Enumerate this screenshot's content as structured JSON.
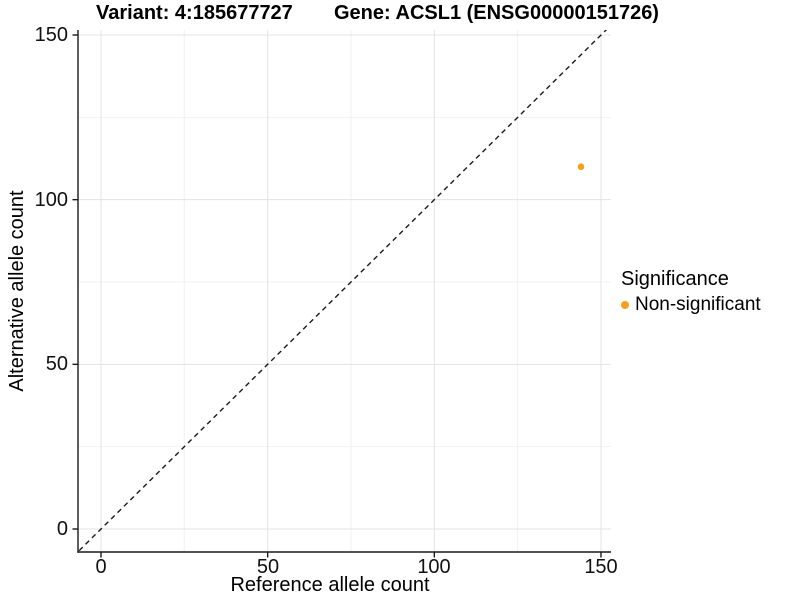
{
  "header": {
    "variant_title": "Variant: 4:185677727",
    "gene_title": "Gene: ACSL1 (ENSG00000151726)"
  },
  "axes": {
    "x": {
      "label": "Reference allele count",
      "ticks": [
        "0",
        "50",
        "100",
        "150"
      ]
    },
    "y": {
      "label": "Alternative allele count",
      "ticks": [
        "0",
        "50",
        "100",
        "150"
      ]
    }
  },
  "legend": {
    "title": "Significance",
    "items": [
      {
        "label": "Non-significant",
        "color": "#F8A01D"
      }
    ]
  },
  "colors": {
    "point": "#F8A01D",
    "grid_major": "#e3e3e3",
    "grid_minor": "#f1f1f1",
    "axis_line": "#1a1a1a",
    "identity_line": "#1a1a1a"
  },
  "chart_data": {
    "type": "scatter",
    "title": "Variant: 4:185677727 | Gene: ACSL1 (ENSG00000151726)",
    "xlabel": "Reference allele count",
    "ylabel": "Alternative allele count",
    "xlim": [
      0,
      150
    ],
    "ylim": [
      0,
      150
    ],
    "x_ticks": [
      0,
      50,
      100,
      150
    ],
    "y_ticks": [
      0,
      50,
      100,
      150
    ],
    "grid": true,
    "legend_position": "right",
    "reference_line": {
      "type": "identity y=x",
      "style": "dashed",
      "color": "#1a1a1a"
    },
    "series": [
      {
        "name": "Non-significant",
        "color": "#F8A01D",
        "points": [
          {
            "x": 144,
            "y": 110
          }
        ]
      }
    ]
  }
}
